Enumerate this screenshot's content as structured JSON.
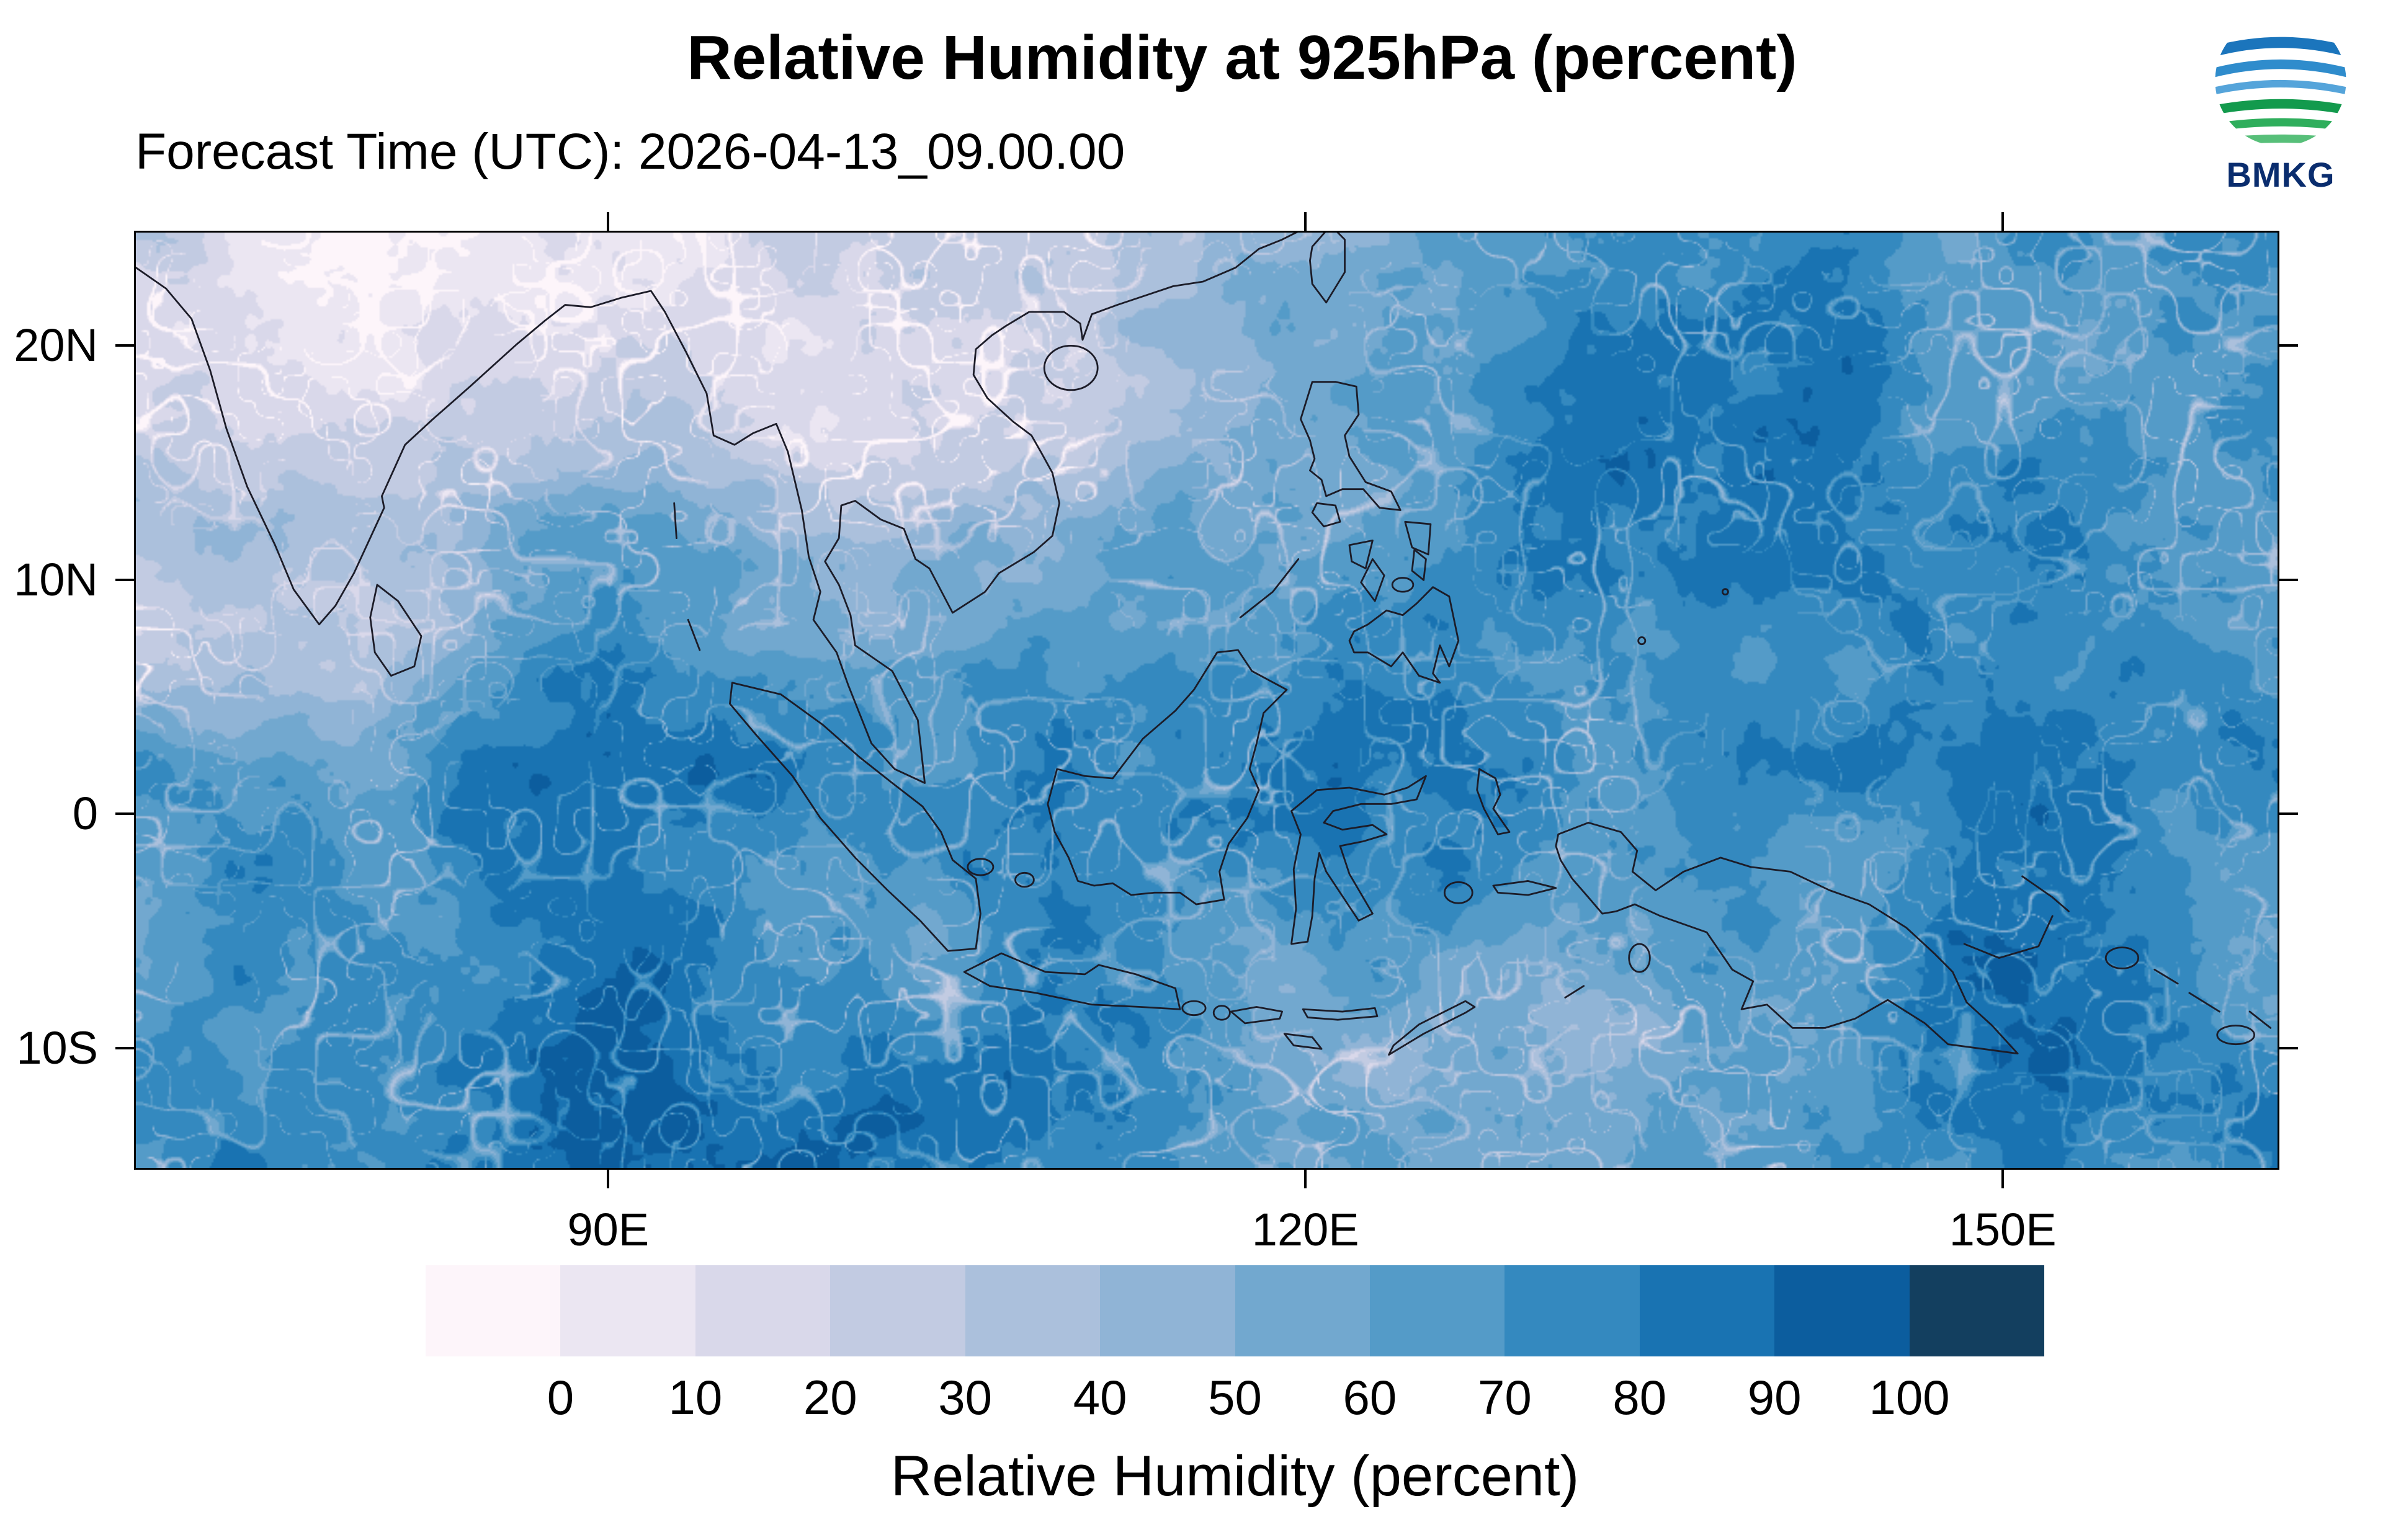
{
  "header": {
    "title": "Relative Humidity at 925hPa (percent)",
    "forecast_label": "Forecast Time (UTC): 2026-04-13_09.00.00",
    "agency": "BMKG"
  },
  "map": {
    "extent": {
      "lon_min": 69.6,
      "lon_max": 161.9,
      "lat_min": -15.2,
      "lat_max": 24.9
    },
    "x_ticks": [
      {
        "lon": 90,
        "label": "90E"
      },
      {
        "lon": 120,
        "label": "120E"
      },
      {
        "lon": 150,
        "label": "150E"
      }
    ],
    "y_ticks": [
      {
        "lat": 20,
        "label": "20N"
      },
      {
        "lat": 10,
        "label": "10N"
      },
      {
        "lat": 0,
        "label": "0"
      },
      {
        "lat": -10,
        "label": "10S"
      }
    ]
  },
  "colorbar": {
    "title": "Relative Humidity (percent)",
    "tick_labels": [
      "0",
      "10",
      "20",
      "30",
      "40",
      "50",
      "60",
      "70",
      "80",
      "90",
      "100"
    ],
    "colors": [
      "#fdf5fa",
      "#ebe6f2",
      "#d9d8ea",
      "#c2cbe2",
      "#abc0dc",
      "#90b4d6",
      "#72a8cf",
      "#549bc8",
      "#3489bf",
      "#1973b2",
      "#0c5d9e",
      "#133f5f"
    ]
  },
  "chart_data": {
    "type": "heatmap",
    "title": "Relative Humidity at 925hPa (percent)",
    "subtitle": "Forecast Time (UTC): 2026-04-13_09.00.00",
    "variable": "Relative Humidity",
    "units": "percent",
    "level": "925hPa",
    "contour_levels": [
      0,
      10,
      20,
      30,
      40,
      50,
      60,
      70,
      80,
      90,
      100
    ],
    "palette": [
      "#fdf5fa",
      "#ebe6f2",
      "#d9d8ea",
      "#c2cbe2",
      "#abc0dc",
      "#90b4d6",
      "#72a8cf",
      "#549bc8",
      "#3489bf",
      "#1973b2",
      "#0c5d9e",
      "#133f5f"
    ],
    "palette_note": "first color = below 0, last color = above 100",
    "x_axis": {
      "label_ticks": [
        "90E",
        "120E",
        "150E"
      ],
      "range_deg_east": [
        69.6,
        161.9
      ]
    },
    "y_axis": {
      "label_ticks": [
        "20N",
        "10N",
        "0",
        "10S"
      ],
      "range_deg_north": [
        -15.2,
        24.9
      ]
    },
    "legend_position": "bottom",
    "sampled_grid": {
      "lons_deg_east": [
        80,
        90,
        100,
        110,
        120,
        130,
        140,
        150,
        160
      ],
      "lats_deg_north": [
        20,
        10,
        0,
        -10
      ],
      "rh_percent": [
        [
          10,
          15,
          10,
          30,
          55,
          75,
          75,
          75,
          75
        ],
        [
          35,
          55,
          45,
          70,
          65,
          80,
          75,
          80,
          70
        ],
        [
          80,
          80,
          75,
          80,
          80,
          80,
          80,
          80,
          80
        ],
        [
          80,
          85,
          80,
          70,
          60,
          55,
          70,
          75,
          70
        ]
      ]
    },
    "pattern_notes": [
      "Dry air (RH 0-30%) over India, northern Bay of Bengal and Indochina in the northwest",
      "Moist air (RH 70-90%) over most equatorial oceans, Indonesia and the western Pacific",
      "Drier patches (RH 40-60%) south of Indonesia near 10-15S",
      "Thin pale low-humidity filaments streaked across the oceanic moist regions"
    ]
  }
}
